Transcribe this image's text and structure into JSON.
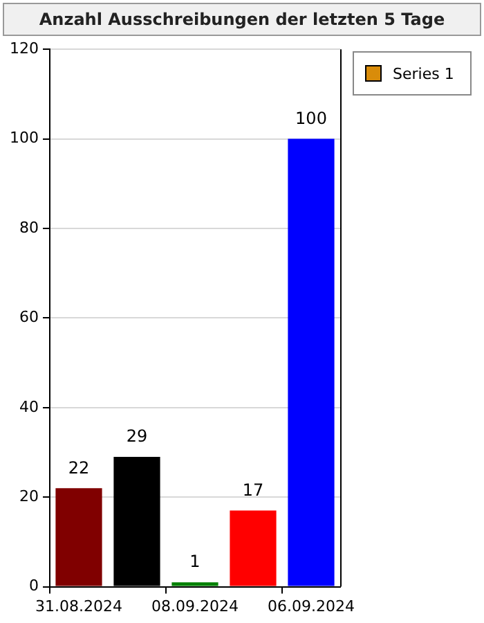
{
  "chart_data": {
    "type": "bar",
    "title": "Anzahl Ausschreibungen der letzten 5 Tage",
    "categories": [
      "31.08.2024",
      null,
      "08.09.2024",
      null,
      "06.09.2024"
    ],
    "series": [
      {
        "name": "Series 1",
        "color": "#d98c0a",
        "colors": [
          "#800000",
          "#000000",
          "#008000",
          "#ff0000",
          "#0000ff"
        ],
        "values": [
          22,
          29,
          1,
          17,
          100
        ]
      }
    ],
    "ylim": [
      0,
      120
    ],
    "yticks": [
      0,
      20,
      40,
      60,
      80,
      100,
      120
    ],
    "grid": "y",
    "legend": "top right",
    "data_labels": true
  }
}
